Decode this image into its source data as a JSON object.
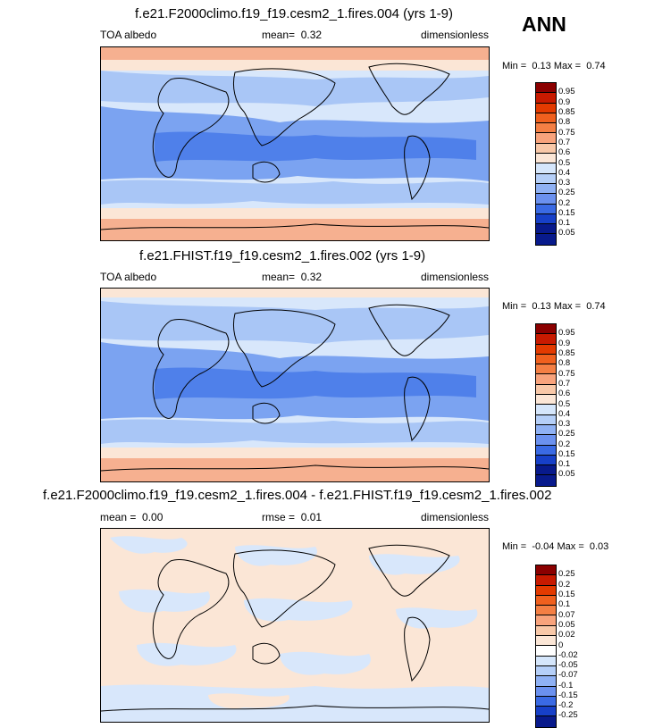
{
  "season": "ANN",
  "panels": [
    {
      "title": "f.e21.F2000climo.f19_f19.cesm2_1.fires.004 (yrs 1-9)",
      "left_label": "TOA albedo",
      "stat_label": "mean=",
      "stat_value": "0.32",
      "right_label": "dimensionless",
      "min_label": "Min =",
      "min_value": "0.13",
      "max_label": "Max =",
      "max_value": "0.74",
      "colorbar": [
        "0.95",
        "0.9",
        "0.85",
        "0.8",
        "0.75",
        "0.7",
        "0.6",
        "0.5",
        "0.4",
        "0.3",
        "0.25",
        "0.2",
        "0.15",
        "0.1",
        "0.05"
      ]
    },
    {
      "title": "f.e21.FHIST.f19_f19.cesm2_1.fires.002 (yrs 1-9)",
      "left_label": "TOA albedo",
      "stat_label": "mean=",
      "stat_value": "0.32",
      "right_label": "dimensionless",
      "min_label": "Min =",
      "min_value": "0.13",
      "max_label": "Max =",
      "max_value": "0.74",
      "colorbar": [
        "0.95",
        "0.9",
        "0.85",
        "0.8",
        "0.75",
        "0.7",
        "0.6",
        "0.5",
        "0.4",
        "0.3",
        "0.25",
        "0.2",
        "0.15",
        "0.1",
        "0.05"
      ]
    },
    {
      "title": "f.e21.F2000climo.f19_f19.cesm2_1.fires.004 - f.e21.FHIST.f19_f19.cesm2_1.fires.002",
      "left_label": "mean =",
      "left_value": "0.00",
      "stat_label": "rmse =",
      "stat_value": "0.01",
      "right_label": "dimensionless",
      "min_label": "Min =",
      "min_value": "-0.04",
      "max_label": "Max =",
      "max_value": "0.03",
      "colorbar": [
        "0.25",
        "0.2",
        "0.15",
        "0.1",
        "0.07",
        "0.05",
        "0.02",
        "0",
        "-0.02",
        "-0.05",
        "-0.07",
        "-0.1",
        "-0.15",
        "-0.2",
        "-0.25"
      ]
    }
  ],
  "colors": {
    "levels": [
      "#8b0000",
      "#c81a00",
      "#e33a00",
      "#f0601e",
      "#f47f44",
      "#f8a37c",
      "#f8c8a8",
      "#fbe6d6",
      "#d5e6fb",
      "#b5cff8",
      "#8fb1f4",
      "#6b91ef",
      "#3a6ae4",
      "#1740c8",
      "#081a8c"
    ],
    "map_fill_mean": [
      "#f6b090",
      "#fbe6d6",
      "#d8e7fb",
      "#a9c6f6",
      "#7ba3f1",
      "#4f80ea"
    ],
    "map_fill_diff": [
      "#fbe6d6",
      "#d8e7fb"
    ]
  }
}
